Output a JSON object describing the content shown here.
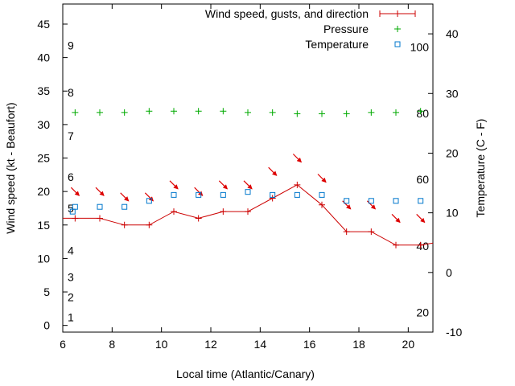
{
  "chart_data": {
    "type": "line",
    "xlabel": "Local time (Atlantic/Canary)",
    "ylabel": "Wind speed (kt - Beaufort)",
    "y2label": "Temperature (C - F)",
    "xlim": [
      6,
      21
    ],
    "ylim": [
      -1,
      48
    ],
    "y2lim": [
      -10,
      45
    ],
    "x_ticks": [
      6,
      8,
      10,
      12,
      14,
      16,
      18,
      20
    ],
    "y_ticks": [
      0,
      5,
      10,
      15,
      20,
      25,
      30,
      35,
      40,
      45
    ],
    "y2_ticks": [
      -10,
      0,
      10,
      20,
      30,
      40
    ],
    "grid": false,
    "legend_position": "top-right",
    "beaufort_labels": [
      {
        "label": "1",
        "y": 1.2
      },
      {
        "label": "2",
        "y": 4.2
      },
      {
        "label": "3",
        "y": 7.2
      },
      {
        "label": "4",
        "y": 11.2
      },
      {
        "label": "5",
        "y": 17.5
      },
      {
        "label": "6",
        "y": 22.2
      },
      {
        "label": "7",
        "y": 28.3
      },
      {
        "label": "8",
        "y": 34.8
      },
      {
        "label": "9",
        "y": 41.8
      }
    ],
    "fahrenheit_labels": [
      {
        "label": "20",
        "y2": -6.7
      },
      {
        "label": "40",
        "y2": 4.4
      },
      {
        "label": "60",
        "y2": 15.6
      },
      {
        "label": "80",
        "y2": 26.7
      },
      {
        "label": "100",
        "y2": 37.8
      }
    ],
    "series": [
      {
        "name": "Wind speed, gusts, and direction",
        "color": "#cc0000",
        "marker": "plus",
        "x": [
          6,
          6.5,
          7.5,
          8.5,
          9.5,
          10.5,
          11.5,
          12.5,
          13.5,
          14.5,
          15.5,
          16.5,
          17.5,
          18.5,
          19.5,
          20.5,
          21
        ],
        "y": [
          16,
          16,
          16,
          15,
          15,
          17,
          16,
          17,
          17,
          19,
          21,
          18,
          14,
          14,
          12,
          12,
          12.3
        ],
        "gusts": [
          {
            "x": 6.5,
            "y": 20
          },
          {
            "x": 7.5,
            "y": 20
          },
          {
            "x": 8.5,
            "y": 19.2
          },
          {
            "x": 9.5,
            "y": 19.2
          },
          {
            "x": 10.5,
            "y": 21
          },
          {
            "x": 11.5,
            "y": 20
          },
          {
            "x": 12.5,
            "y": 21
          },
          {
            "x": 13.5,
            "y": 21
          },
          {
            "x": 14.5,
            "y": 23
          },
          {
            "x": 15.5,
            "y": 25
          },
          {
            "x": 16.5,
            "y": 22
          },
          {
            "x": 17.5,
            "y": 18
          },
          {
            "x": 18.5,
            "y": 18
          },
          {
            "x": 19.5,
            "y": 16
          },
          {
            "x": 20.5,
            "y": 16
          }
        ]
      },
      {
        "name": "Pressure",
        "color": "#00aa00",
        "marker": "plus",
        "x": [
          6.5,
          7.5,
          8.5,
          9.5,
          10.5,
          11.5,
          12.5,
          13.5,
          14.5,
          15.5,
          16.5,
          17.5,
          18.5,
          19.5,
          20.5
        ],
        "y": [
          31.8,
          31.8,
          31.8,
          32,
          32,
          32,
          32,
          31.8,
          31.8,
          31.6,
          31.6,
          31.6,
          31.8,
          31.8,
          32
        ]
      },
      {
        "name": "Temperature",
        "color": "#0077cc",
        "marker": "square",
        "axis": "y2",
        "x": [
          6.4,
          6.5,
          7.5,
          8.5,
          9.5,
          10.5,
          11.5,
          12.5,
          13.5,
          14.5,
          15.5,
          16.5,
          17.5,
          18.5,
          19.5,
          20.5
        ],
        "y": [
          10.2,
          11.0,
          11.0,
          11.0,
          12.0,
          13.0,
          13.0,
          13.0,
          13.5,
          13.0,
          13.0,
          13.0,
          12.0,
          12.0,
          12.0,
          12.0
        ]
      }
    ]
  }
}
